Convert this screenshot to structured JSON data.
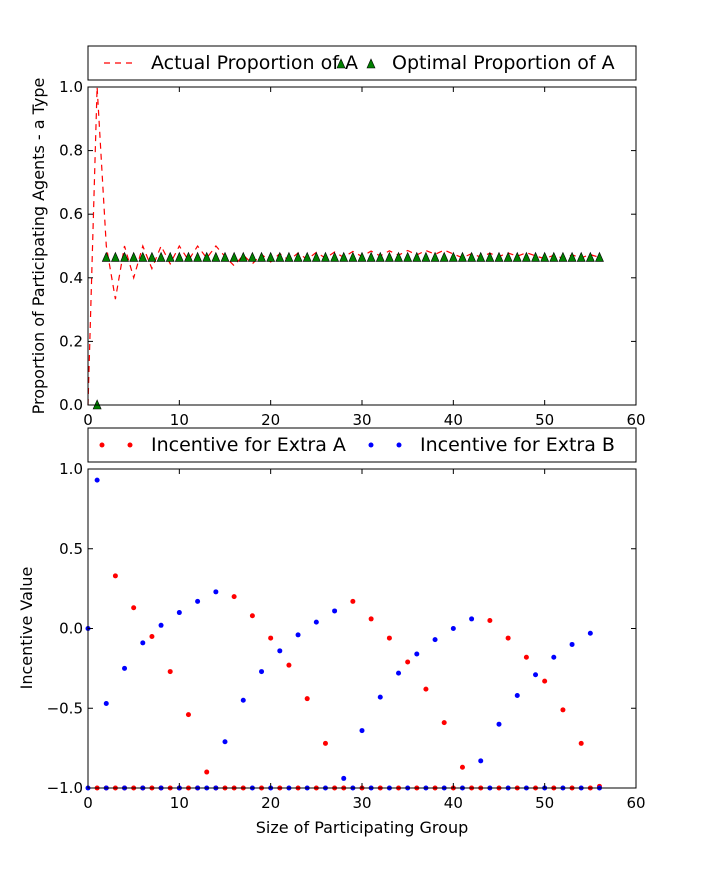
{
  "chart_data": [
    {
      "type": "line",
      "title": "",
      "xlabel": "",
      "ylabel": "Proportion of Participating Agents - a Type",
      "xlim": [
        0,
        60
      ],
      "ylim": [
        0.0,
        1.0
      ],
      "xticks": [
        "0",
        "10",
        "20",
        "30",
        "40",
        "50",
        "60"
      ],
      "yticks": [
        "0.0",
        "0.2",
        "0.4",
        "0.6",
        "0.8",
        "1.0"
      ],
      "grid": false,
      "legend_position": "top, outside",
      "series": [
        {
          "name": "Actual Proportion of A",
          "style": "dashed-line",
          "color": "#ff0000",
          "x": [
            0,
            1,
            2,
            3,
            4,
            5,
            6,
            7,
            8,
            9,
            10,
            11,
            12,
            13,
            14,
            15,
            16,
            17,
            18,
            19,
            20,
            21,
            22,
            23,
            24,
            25,
            26,
            27,
            28,
            29,
            30,
            31,
            32,
            33,
            34,
            35,
            36,
            37,
            38,
            39,
            40,
            41,
            42,
            43,
            44,
            45,
            46,
            47,
            48,
            49,
            50,
            51,
            52,
            53,
            54,
            55,
            56
          ],
          "y": [
            0.0,
            1.0,
            0.5,
            0.333,
            0.5,
            0.4,
            0.5,
            0.429,
            0.5,
            0.444,
            0.5,
            0.455,
            0.5,
            0.462,
            0.5,
            0.467,
            0.438,
            0.471,
            0.444,
            0.474,
            0.45,
            0.476,
            0.455,
            0.478,
            0.458,
            0.48,
            0.462,
            0.481,
            0.464,
            0.483,
            0.467,
            0.484,
            0.469,
            0.485,
            0.471,
            0.486,
            0.472,
            0.486,
            0.474,
            0.487,
            0.475,
            0.463,
            0.476,
            0.465,
            0.477,
            0.467,
            0.478,
            0.468,
            0.479,
            0.469,
            0.46,
            0.471,
            0.462,
            0.472,
            0.463,
            0.473,
            0.464
          ]
        },
        {
          "name": "Optimal Proportion of A",
          "style": "triangle-markers",
          "color": "#008000",
          "x": [
            1,
            2,
            3,
            4,
            5,
            6,
            7,
            8,
            9,
            10,
            11,
            12,
            13,
            14,
            15,
            16,
            17,
            18,
            19,
            20,
            21,
            22,
            23,
            24,
            25,
            26,
            27,
            28,
            29,
            30,
            31,
            32,
            33,
            34,
            35,
            36,
            37,
            38,
            39,
            40,
            41,
            42,
            43,
            44,
            45,
            46,
            47,
            48,
            49,
            50,
            51,
            52,
            53,
            54,
            55,
            56
          ],
          "y": [
            0.0,
            0.464,
            0.464,
            0.464,
            0.464,
            0.464,
            0.464,
            0.464,
            0.464,
            0.464,
            0.464,
            0.464,
            0.464,
            0.464,
            0.464,
            0.464,
            0.464,
            0.464,
            0.464,
            0.464,
            0.464,
            0.464,
            0.464,
            0.464,
            0.464,
            0.464,
            0.464,
            0.464,
            0.464,
            0.464,
            0.464,
            0.464,
            0.464,
            0.464,
            0.464,
            0.464,
            0.464,
            0.464,
            0.464,
            0.464,
            0.464,
            0.464,
            0.464,
            0.464,
            0.464,
            0.464,
            0.464,
            0.464,
            0.464,
            0.464,
            0.464,
            0.464,
            0.464,
            0.464,
            0.464,
            0.464
          ]
        }
      ]
    },
    {
      "type": "scatter",
      "title": "",
      "xlabel": "Size of Participating Group",
      "ylabel": "Incentive Value",
      "xlim": [
        0,
        60
      ],
      "ylim": [
        -1.0,
        1.0
      ],
      "xticks": [
        "0",
        "10",
        "20",
        "30",
        "40",
        "50",
        "60"
      ],
      "yticks": [
        "−1.0",
        "−0.5",
        "0.0",
        "0.5",
        "1.0"
      ],
      "grid": false,
      "legend_position": "top, outside",
      "series": [
        {
          "name": "Incentive for Extra A",
          "color": "#ff0000",
          "points": [
            [
              3,
              0.33
            ],
            [
              5,
              0.13
            ],
            [
              7,
              -0.05
            ],
            [
              9,
              -0.27
            ],
            [
              11,
              -0.54
            ],
            [
              13,
              -0.9
            ],
            [
              16,
              0.2
            ],
            [
              18,
              0.08
            ],
            [
              20,
              -0.06
            ],
            [
              22,
              -0.23
            ],
            [
              24,
              -0.44
            ],
            [
              26,
              -0.72
            ],
            [
              29,
              0.17
            ],
            [
              31,
              0.06
            ],
            [
              33,
              -0.06
            ],
            [
              35,
              -0.21
            ],
            [
              37,
              -0.38
            ],
            [
              39,
              -0.59
            ],
            [
              41,
              -0.87
            ],
            [
              44,
              0.05
            ],
            [
              46,
              -0.06
            ],
            [
              48,
              -0.18
            ],
            [
              50,
              -0.33
            ],
            [
              52,
              -0.51
            ],
            [
              54,
              -0.72
            ],
            [
              1,
              -1.0
            ],
            [
              2,
              -1.0
            ],
            [
              3,
              -1.0
            ],
            [
              4,
              -1.0
            ],
            [
              5,
              -1.0
            ],
            [
              6,
              -1.0
            ],
            [
              7,
              -1.0
            ],
            [
              8,
              -1.0
            ],
            [
              9,
              -1.0
            ],
            [
              10,
              -1.0
            ],
            [
              11,
              -1.0
            ],
            [
              12,
              -1.0
            ],
            [
              14,
              -1.0
            ],
            [
              15,
              -1.0
            ],
            [
              16,
              -1.0
            ],
            [
              17,
              -1.0
            ],
            [
              19,
              -1.0
            ],
            [
              21,
              -1.0
            ],
            [
              23,
              -1.0
            ],
            [
              25,
              -1.0
            ],
            [
              27,
              -1.0
            ],
            [
              28,
              -1.0
            ],
            [
              30,
              -1.0
            ],
            [
              32,
              -1.0
            ],
            [
              34,
              -1.0
            ],
            [
              36,
              -1.0
            ],
            [
              38,
              -1.0
            ],
            [
              40,
              -1.0
            ],
            [
              42,
              -1.0
            ],
            [
              43,
              -1.0
            ],
            [
              45,
              -1.0
            ],
            [
              47,
              -1.0
            ],
            [
              49,
              -1.0
            ],
            [
              51,
              -1.0
            ],
            [
              53,
              -1.0
            ],
            [
              55,
              -1.0
            ],
            [
              56,
              -0.99
            ]
          ]
        },
        {
          "name": "Incentive for Extra B",
          "color": "#0000ff",
          "points": [
            [
              0,
              0.0
            ],
            [
              1,
              0.93
            ],
            [
              2,
              -0.47
            ],
            [
              4,
              -0.25
            ],
            [
              6,
              -0.09
            ],
            [
              8,
              0.02
            ],
            [
              10,
              0.1
            ],
            [
              12,
              0.17
            ],
            [
              14,
              0.23
            ],
            [
              15,
              -0.71
            ],
            [
              17,
              -0.45
            ],
            [
              19,
              -0.27
            ],
            [
              21,
              -0.14
            ],
            [
              23,
              -0.04
            ],
            [
              25,
              0.04
            ],
            [
              27,
              0.11
            ],
            [
              28,
              -0.94
            ],
            [
              30,
              -0.64
            ],
            [
              32,
              -0.43
            ],
            [
              34,
              -0.28
            ],
            [
              36,
              -0.16
            ],
            [
              38,
              -0.07
            ],
            [
              40,
              0.0
            ],
            [
              42,
              0.06
            ],
            [
              43,
              -0.83
            ],
            [
              45,
              -0.6
            ],
            [
              47,
              -0.42
            ],
            [
              49,
              -0.29
            ],
            [
              51,
              -0.18
            ],
            [
              53,
              -0.1
            ],
            [
              55,
              -0.03
            ],
            [
              0,
              -1.0
            ],
            [
              2,
              -1.0
            ],
            [
              4,
              -1.0
            ],
            [
              6,
              -1.0
            ],
            [
              8,
              -1.0
            ],
            [
              10,
              -1.0
            ],
            [
              12,
              -1.0
            ],
            [
              13,
              -1.0
            ],
            [
              14,
              -1.0
            ],
            [
              18,
              -1.0
            ],
            [
              20,
              -1.0
            ],
            [
              22,
              -1.0
            ],
            [
              24,
              -1.0
            ],
            [
              26,
              -1.0
            ],
            [
              29,
              -1.0
            ],
            [
              31,
              -1.0
            ],
            [
              33,
              -1.0
            ],
            [
              35,
              -1.0
            ],
            [
              37,
              -1.0
            ],
            [
              39,
              -1.0
            ],
            [
              41,
              -1.0
            ],
            [
              44,
              -1.0
            ],
            [
              46,
              -1.0
            ],
            [
              48,
              -1.0
            ],
            [
              50,
              -1.0
            ],
            [
              52,
              -1.0
            ],
            [
              54,
              -1.0
            ],
            [
              56,
              -1.0
            ]
          ]
        }
      ]
    }
  ]
}
